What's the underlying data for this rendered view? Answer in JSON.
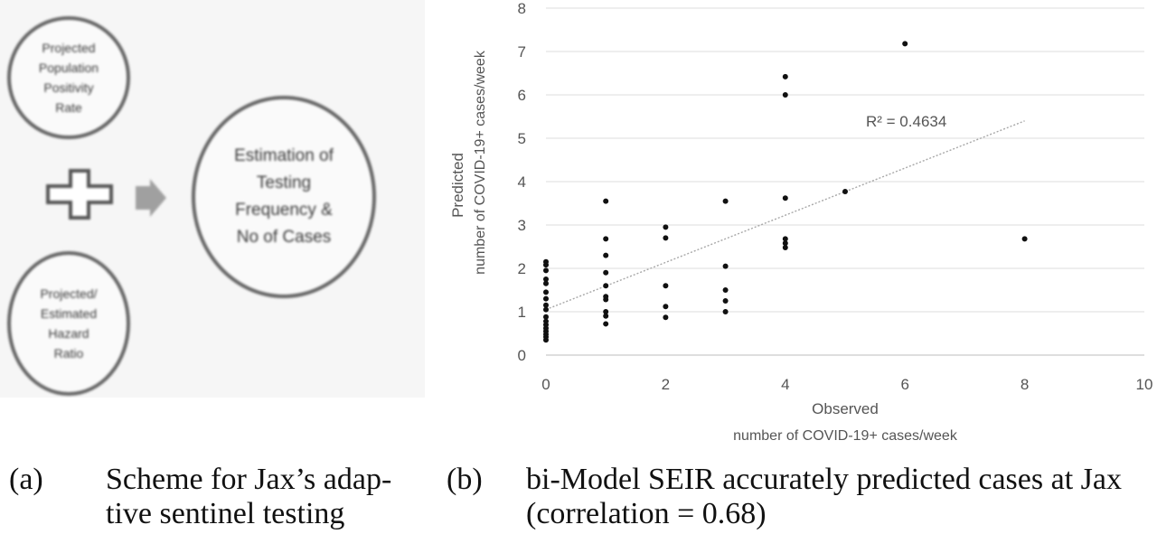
{
  "panel_a": {
    "circle_top": "Projected\nPopulation\nPositivity\nRate",
    "circle_bottom": "Projected/\nEstimated\nHazard\nRatio",
    "circle_big": "Estimation of\nTesting\nFrequency &\nNo of Cases",
    "plus_icon": "plus-icon",
    "arrow_icon": "right-arrow-icon"
  },
  "chart_data": {
    "type": "scatter",
    "title": "",
    "xlabel_line1": "Observed",
    "xlabel_line2": "number of COVID-19+ cases/week",
    "ylabel_line1": "Predicted",
    "ylabel_line2": "number of COVID-19+ cases/week",
    "xlim": [
      0,
      10
    ],
    "ylim": [
      0,
      8
    ],
    "xticks": [
      "0",
      "2",
      "4",
      "6",
      "8",
      "10"
    ],
    "yticks": [
      "0",
      "1",
      "2",
      "3",
      "4",
      "5",
      "6",
      "7",
      "8"
    ],
    "grid": "horizontal",
    "trendline": {
      "type": "linear",
      "x": [
        0,
        8
      ],
      "y": [
        1.05,
        5.4
      ],
      "r2_label": "R² = 0.4634"
    },
    "points": [
      [
        0,
        0.35
      ],
      [
        0,
        0.42
      ],
      [
        0,
        0.48
      ],
      [
        0,
        0.55
      ],
      [
        0,
        0.62
      ],
      [
        0,
        0.7
      ],
      [
        0,
        0.78
      ],
      [
        0,
        0.88
      ],
      [
        0,
        1.05
      ],
      [
        0,
        1.15
      ],
      [
        0,
        1.3
      ],
      [
        0,
        1.45
      ],
      [
        0,
        1.65
      ],
      [
        0,
        1.75
      ],
      [
        0,
        1.95
      ],
      [
        0,
        2.08
      ],
      [
        0,
        2.15
      ],
      [
        1,
        0.72
      ],
      [
        1,
        0.9
      ],
      [
        1,
        1.0
      ],
      [
        1,
        1.28
      ],
      [
        1,
        1.35
      ],
      [
        1,
        1.6
      ],
      [
        1,
        1.9
      ],
      [
        1,
        2.3
      ],
      [
        1,
        2.68
      ],
      [
        1,
        3.55
      ],
      [
        2,
        0.87
      ],
      [
        2,
        1.12
      ],
      [
        2,
        1.6
      ],
      [
        2,
        2.7
      ],
      [
        2,
        2.95
      ],
      [
        3,
        1.0
      ],
      [
        3,
        1.25
      ],
      [
        3,
        1.5
      ],
      [
        3,
        2.05
      ],
      [
        3,
        3.55
      ],
      [
        4,
        2.48
      ],
      [
        4,
        2.58
      ],
      [
        4,
        2.68
      ],
      [
        4,
        3.62
      ],
      [
        4,
        6.0
      ],
      [
        4,
        6.42
      ],
      [
        5,
        3.77
      ],
      [
        6,
        7.18
      ],
      [
        8,
        2.68
      ]
    ],
    "point_color": "#111111",
    "trend_color": "#a8a8a8"
  },
  "captions": {
    "a_label": "(a)",
    "a_text": "Scheme for Jax’s adap- tive sentinel testing",
    "b_label": "(b)",
    "b_text": "bi-Model SEIR accurately predicted cases at Jax (correlation = 0.68)"
  }
}
